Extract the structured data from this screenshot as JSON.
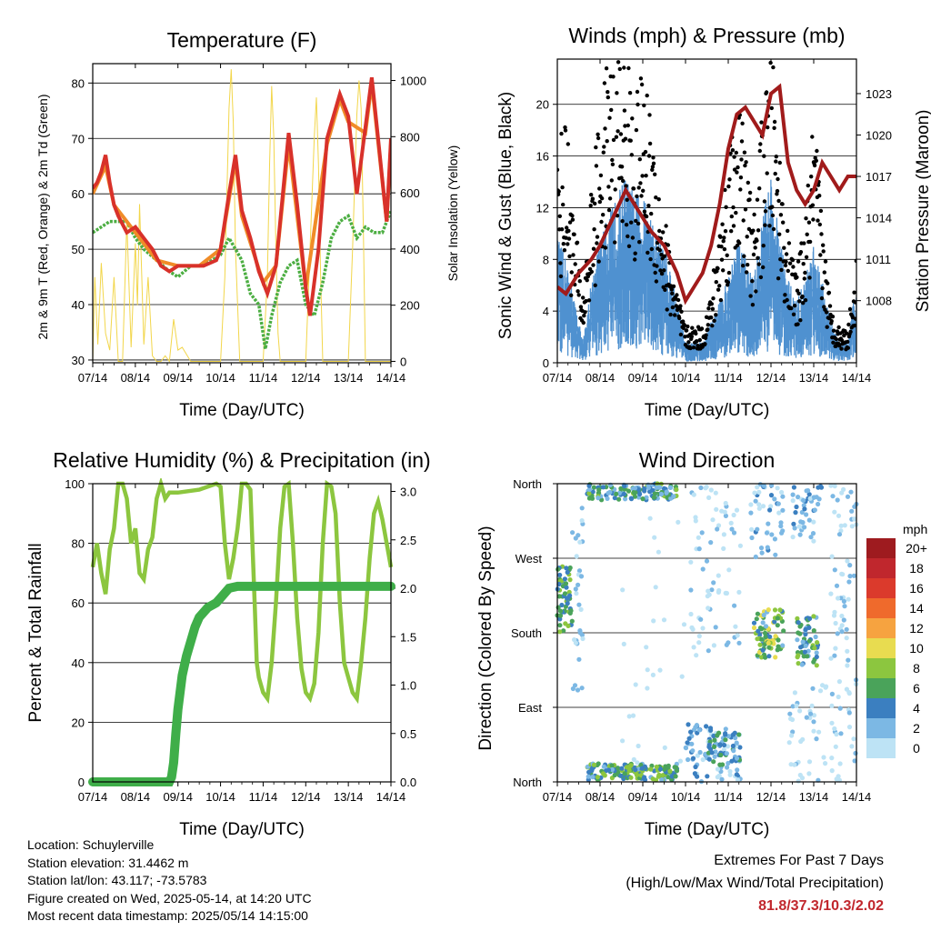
{
  "chart_data": [
    {
      "type": "line",
      "title": "Temperature (F)",
      "xlabel": "Time (Day/UTC)",
      "ylabel_left": "2m & 9m T (Red, Orange) & 2m Td (Green)",
      "ylabel_right": "Solar Insolation (Yellow)",
      "x_ticks": [
        "07/14",
        "08/14",
        "09/14",
        "10/14",
        "11/14",
        "12/14",
        "13/14",
        "14/14"
      ],
      "ylim_left": [
        29.5,
        83.5
      ],
      "yticks_left": [
        30,
        40,
        50,
        60,
        70,
        80
      ],
      "ylim_right": [
        -5,
        1060
      ],
      "yticks_right": [
        0,
        200,
        400,
        600,
        800,
        1000
      ],
      "grid": true,
      "series": [
        {
          "name": "2m T",
          "color": "#d8312a",
          "x": [
            0,
            0.1,
            0.2,
            0.3,
            0.4,
            0.5,
            0.6,
            0.8,
            1.0,
            1.2,
            1.4,
            1.6,
            1.8,
            2.0,
            2.3,
            2.6,
            2.9,
            3.0,
            3.2,
            3.35,
            3.5,
            3.7,
            3.9,
            4.1,
            4.3,
            4.6,
            4.8,
            5.0,
            5.1,
            5.3,
            5.5,
            5.8,
            6.0,
            6.2,
            6.4,
            6.55,
            6.7,
            6.9,
            7.0
          ],
          "y": [
            61,
            62,
            64,
            67,
            62,
            58,
            56,
            53,
            54,
            52,
            50,
            47,
            46,
            47,
            47,
            47,
            48,
            50,
            60,
            67,
            57,
            52,
            46,
            42,
            47,
            71,
            58,
            43,
            38,
            50,
            70,
            78,
            74,
            60,
            72,
            81,
            70,
            55,
            70
          ]
        },
        {
          "name": "9m T",
          "color": "#f08c28",
          "x": [
            0,
            0.3,
            0.5,
            1.0,
            1.5,
            2.0,
            2.5,
            3.0,
            3.35,
            3.5,
            4.0,
            4.3,
            4.6,
            5.0,
            5.5,
            5.8,
            6.0,
            6.4,
            6.55,
            6.9,
            7.0
          ],
          "y": [
            60,
            65,
            58,
            53,
            48,
            47,
            47,
            50,
            66,
            56,
            44,
            47,
            69,
            43,
            69,
            77,
            73,
            71,
            80,
            55,
            69
          ]
        },
        {
          "name": "2m Td",
          "color": "#4cae42",
          "x": [
            0,
            0.2,
            0.4,
            0.6,
            0.8,
            1.0,
            1.2,
            1.5,
            1.8,
            2.0,
            2.3,
            2.6,
            3.0,
            3.2,
            3.35,
            3.5,
            3.7,
            3.9,
            4.05,
            4.2,
            4.4,
            4.6,
            4.8,
            5.0,
            5.2,
            5.4,
            5.6,
            5.8,
            6.0,
            6.2,
            6.4,
            6.6,
            6.8,
            7.0
          ],
          "y": [
            53,
            54,
            55,
            55,
            55,
            52,
            50,
            48,
            46,
            45,
            47,
            47,
            49,
            52,
            50,
            48,
            42,
            40,
            32,
            38,
            44,
            47,
            48,
            40,
            38,
            44,
            52,
            55,
            56,
            52,
            54,
            53,
            53,
            57
          ]
        },
        {
          "name": "Solar Insolation",
          "color": "#f2d64b",
          "axis": "right",
          "x": [
            0,
            0.05,
            0.12,
            0.2,
            0.3,
            0.4,
            0.5,
            0.6,
            0.7,
            0.8,
            0.9,
            1.0,
            1.05,
            1.1,
            1.2,
            1.3,
            1.4,
            1.5,
            1.6,
            1.7,
            1.8,
            1.9,
            2.0,
            2.1,
            2.3,
            2.5,
            3.0,
            3.1,
            3.2,
            3.25,
            3.3,
            3.35,
            3.45,
            3.6,
            3.8,
            4.0,
            4.1,
            4.15,
            4.2,
            4.25,
            4.3,
            4.35,
            4.4,
            4.5,
            5.0,
            5.1,
            5.2,
            5.25,
            5.3,
            5.35,
            5.4,
            5.5,
            6.0,
            6.1,
            6.2,
            6.25,
            6.3,
            6.35,
            6.4,
            6.5,
            7.0
          ],
          "y": [
            0,
            300,
            60,
            350,
            100,
            40,
            300,
            0,
            0,
            500,
            50,
            420,
            200,
            560,
            60,
            300,
            20,
            0,
            0,
            20,
            0,
            150,
            40,
            50,
            0,
            0,
            0,
            300,
            900,
            1040,
            850,
            400,
            0,
            0,
            0,
            0,
            300,
            700,
            980,
            800,
            400,
            100,
            0,
            0,
            0,
            400,
            800,
            940,
            700,
            300,
            0,
            0,
            0,
            400,
            880,
            1000,
            900,
            500,
            0,
            0,
            0
          ]
        }
      ]
    },
    {
      "type": "line",
      "title": "Winds (mph) & Pressure (mb)",
      "xlabel": "Time (Day/UTC)",
      "ylabel_left": "Sonic Wind & Gust (Blue, Black)",
      "ylabel_right": "Station Pressure (Maroon)",
      "x_ticks": [
        "07/14",
        "08/14",
        "09/14",
        "10/14",
        "11/14",
        "12/14",
        "13/14",
        "14/14"
      ],
      "ylim_left": [
        0,
        23.5
      ],
      "yticks_left": [
        0,
        4,
        8,
        12,
        16,
        20
      ],
      "ylim_right": [
        1003.5,
        1025.5
      ],
      "yticks_right": [
        1008,
        1011,
        1014,
        1017,
        1020,
        1023
      ],
      "grid": true,
      "series": [
        {
          "name": "Sonic Wind",
          "color": "#4f91d0",
          "x": [
            0,
            0.2,
            0.4,
            0.6,
            0.8,
            1.0,
            1.2,
            1.4,
            1.6,
            1.8,
            2.0,
            2.2,
            2.4,
            2.6,
            2.8,
            3.0,
            3.2,
            3.4,
            3.6,
            3.8,
            4.0,
            4.2,
            4.4,
            4.6,
            4.8,
            5.0,
            5.2,
            5.4,
            5.6,
            5.8,
            6.0,
            6.2,
            6.4,
            6.6,
            6.8,
            7.0
          ],
          "y": [
            6,
            5,
            3,
            1,
            4,
            6,
            7,
            8,
            9,
            8,
            8,
            7,
            6,
            5,
            3,
            1,
            1,
            1,
            2,
            3,
            4,
            6,
            5,
            4,
            7,
            9,
            6,
            4,
            3,
            4,
            6,
            4,
            2,
            1,
            1,
            4
          ]
        },
        {
          "name": "Gust",
          "color": "#000000",
          "x": [
            0,
            0.2,
            0.4,
            0.6,
            0.8,
            1.0,
            1.2,
            1.4,
            1.6,
            1.8,
            2.0,
            2.2,
            2.4,
            2.6,
            2.8,
            3.0,
            3.2,
            3.4,
            3.6,
            3.8,
            4.0,
            4.2,
            4.4,
            4.6,
            4.8,
            5.0,
            5.2,
            5.4,
            5.6,
            5.8,
            6.0,
            6.2,
            6.4,
            6.6,
            6.8,
            7.0
          ],
          "y": [
            12,
            14,
            8,
            4,
            10,
            14,
            17,
            19,
            17,
            15,
            16,
            14,
            10,
            7,
            4,
            2,
            2,
            2,
            4,
            8,
            12,
            16,
            12,
            8,
            14,
            18,
            12,
            7,
            5,
            8,
            14,
            8,
            3,
            2,
            2,
            6
          ]
        },
        {
          "name": "Station Pressure",
          "color": "#a11b1b",
          "axis": "right",
          "x": [
            0,
            0.2,
            0.5,
            0.8,
            1.0,
            1.3,
            1.6,
            1.8,
            2.0,
            2.2,
            2.5,
            2.8,
            3.0,
            3.2,
            3.4,
            3.6,
            3.8,
            4.0,
            4.2,
            4.4,
            4.6,
            4.8,
            5.0,
            5.2,
            5.4,
            5.6,
            5.8,
            6.0,
            6.2,
            6.4,
            6.6,
            6.8,
            7.0
          ],
          "y": [
            1009,
            1008.5,
            1010,
            1011,
            1012,
            1014,
            1016,
            1015,
            1014,
            1013,
            1012,
            1010,
            1008,
            1009,
            1010,
            1012,
            1015,
            1019,
            1021.5,
            1022,
            1021,
            1020,
            1023,
            1023.5,
            1018,
            1016,
            1015,
            1016,
            1018,
            1017,
            1016,
            1017,
            1017
          ]
        }
      ]
    },
    {
      "type": "line",
      "title": "Relative Humidity (%) & Precipitation (in)",
      "xlabel": "Time (Day/UTC)",
      "ylabel_left": "Percent & Total Rainfall",
      "x_ticks": [
        "07/14",
        "08/14",
        "09/14",
        "10/14",
        "11/14",
        "12/14",
        "13/14",
        "14/14"
      ],
      "ylim_left": [
        0,
        100
      ],
      "yticks_left": [
        0,
        20,
        40,
        60,
        80,
        100
      ],
      "ylim_right": [
        0,
        3.08
      ],
      "yticks_right": [
        "0.0",
        "0.5",
        "1.0",
        "1.5",
        "2.0",
        "2.5",
        "3.0"
      ],
      "grid": true,
      "series": [
        {
          "name": "Relative Humidity",
          "color": "#8cc63f",
          "x": [
            0,
            0.1,
            0.2,
            0.3,
            0.4,
            0.5,
            0.6,
            0.7,
            0.8,
            0.9,
            1.0,
            1.1,
            1.2,
            1.3,
            1.4,
            1.5,
            1.6,
            1.7,
            1.8,
            2.0,
            2.5,
            2.9,
            3.0,
            3.1,
            3.2,
            3.3,
            3.4,
            3.45,
            3.5,
            3.6,
            3.7,
            3.8,
            3.85,
            3.9,
            4.0,
            4.1,
            4.2,
            4.3,
            4.4,
            4.5,
            4.6,
            4.7,
            4.8,
            4.9,
            5.0,
            5.1,
            5.2,
            5.3,
            5.4,
            5.5,
            5.6,
            5.7,
            5.8,
            5.9,
            6.0,
            6.1,
            6.2,
            6.3,
            6.4,
            6.5,
            6.6,
            6.7,
            6.8,
            6.9,
            7.0
          ],
          "y": [
            72,
            80,
            70,
            63,
            78,
            85,
            100,
            100,
            95,
            80,
            85,
            70,
            68,
            78,
            82,
            95,
            100,
            95,
            97,
            97,
            98,
            100,
            99,
            80,
            68,
            75,
            85,
            92,
            100,
            100,
            98,
            60,
            40,
            35,
            30,
            28,
            40,
            60,
            85,
            99,
            100,
            80,
            55,
            38,
            30,
            28,
            33,
            50,
            80,
            100,
            99,
            90,
            60,
            40,
            35,
            30,
            28,
            40,
            55,
            75,
            90,
            94,
            88,
            80,
            72
          ]
        },
        {
          "name": "Total Rainfall",
          "color": "#3fae49",
          "axis": "right",
          "x": [
            0,
            1.0,
            1.8,
            1.85,
            1.9,
            1.95,
            2.0,
            2.1,
            2.2,
            2.4,
            2.5,
            2.7,
            2.9,
            3.0,
            3.2,
            3.4,
            3.6,
            4.0,
            5.0,
            6.0,
            7.0
          ],
          "y": [
            0,
            0,
            0,
            0.05,
            0.2,
            0.5,
            0.75,
            1.1,
            1.3,
            1.6,
            1.7,
            1.8,
            1.85,
            1.9,
            2.0,
            2.02,
            2.02,
            2.02,
            2.02,
            2.02,
            2.02
          ]
        }
      ]
    },
    {
      "type": "scatter",
      "title": "Wind Direction",
      "xlabel": "Time (Day/UTC)",
      "ylabel": "Direction (Colored By Speed)",
      "x_ticks": [
        "07/14",
        "08/14",
        "09/14",
        "10/14",
        "11/14",
        "12/14",
        "13/14",
        "14/14"
      ],
      "y_ticks": [
        "North",
        "East",
        "South",
        "West",
        "North"
      ],
      "ylim": [
        0,
        360
      ],
      "grid": true,
      "colorbar": {
        "unit": "mph",
        "labels": [
          "20+",
          "18",
          "16",
          "14",
          "12",
          "10",
          "8",
          "6",
          "4",
          "2",
          "0"
        ],
        "colors": [
          "#9e1b1f",
          "#c0272d",
          "#db3a2c",
          "#ef6a2c",
          "#f6a340",
          "#e8dc50",
          "#8cc63f",
          "#4aa35a",
          "#3b7fc0",
          "#7cb8e4",
          "#bde3f5"
        ]
      },
      "clusters": [
        {
          "x": [
            0.0,
            0.35
          ],
          "y": [
            180,
            260
          ],
          "speed": [
            4,
            9
          ],
          "n": 55
        },
        {
          "x": [
            0.35,
            0.6
          ],
          "y": [
            100,
            340
          ],
          "speed": [
            1,
            4
          ],
          "n": 30
        },
        {
          "x": [
            0.7,
            2.8
          ],
          "y": [
            2,
            22
          ],
          "speed": [
            3,
            10
          ],
          "n": 160
        },
        {
          "x": [
            0.7,
            2.8
          ],
          "y": [
            340,
            360
          ],
          "speed": [
            2,
            9
          ],
          "n": 130
        },
        {
          "x": [
            3.0,
            4.3
          ],
          "y": [
            0,
            70
          ],
          "speed": [
            1,
            6
          ],
          "n": 90
        },
        {
          "x": [
            3.5,
            4.3
          ],
          "y": [
            20,
            60
          ],
          "speed": [
            3,
            8
          ],
          "n": 35
        },
        {
          "x": [
            3.1,
            4.3
          ],
          "y": [
            150,
            360
          ],
          "speed": [
            0,
            3
          ],
          "n": 70
        },
        {
          "x": [
            4.6,
            5.3
          ],
          "y": [
            150,
            210
          ],
          "speed": [
            3,
            11
          ],
          "n": 80
        },
        {
          "x": [
            4.5,
            5.3
          ],
          "y": [
            270,
            360
          ],
          "speed": [
            1,
            5
          ],
          "n": 45
        },
        {
          "x": [
            5.6,
            6.1
          ],
          "y": [
            140,
            200
          ],
          "speed": [
            3,
            9
          ],
          "n": 55
        },
        {
          "x": [
            5.5,
            6.2
          ],
          "y": [
            290,
            360
          ],
          "speed": [
            1,
            5
          ],
          "n": 45
        },
        {
          "x": [
            5.4,
            6.3
          ],
          "y": [
            0,
            120
          ],
          "speed": [
            0,
            3
          ],
          "n": 40
        },
        {
          "x": [
            6.4,
            7.0
          ],
          "y": [
            0,
            360
          ],
          "speed": [
            0,
            3
          ],
          "n": 85
        },
        {
          "x": [
            1.5,
            3.0
          ],
          "y": [
            20,
            340
          ],
          "speed": [
            0,
            2
          ],
          "n": 25
        }
      ]
    }
  ],
  "footer": {
    "location": "Location: Schuylerville",
    "elevation": "Station elevation: 31.4462 m",
    "latlon": "Station lat/lon: 43.117; -73.5783",
    "created": "Figure created on Wed, 2025-05-14, at 14:20 UTC",
    "recent": "Most recent data timestamp: 2025/05/14 14:15:00"
  },
  "extremes": {
    "title": "Extremes For Past 7 Days",
    "subtitle": "(High/Low/Max Wind/Total Precipitation)",
    "values": "81.8/37.3/10.3/2.02"
  }
}
